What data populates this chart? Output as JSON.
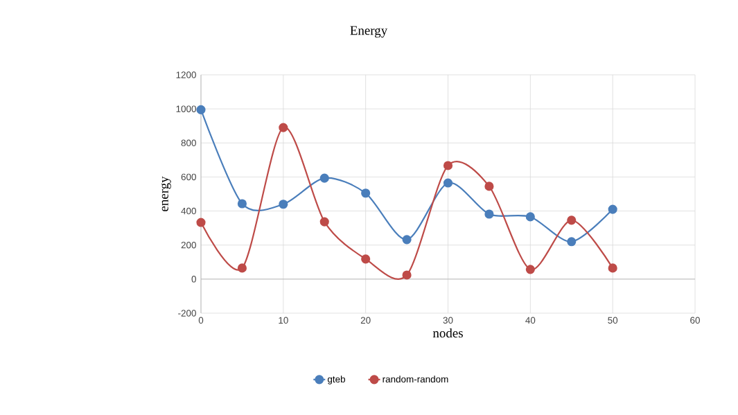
{
  "chart_data": {
    "type": "line",
    "title": "Energy",
    "xlabel": "nodes",
    "ylabel": "energy",
    "x": [
      0,
      5,
      10,
      15,
      20,
      25,
      30,
      35,
      40,
      45,
      50
    ],
    "series": [
      {
        "name": "gteb",
        "color": "#4a7ebb",
        "values": [
          995,
          443,
          440,
          593,
          505,
          232,
          565,
          382,
          366,
          220,
          410
        ]
      },
      {
        "name": "random-random",
        "color": "#be4b48",
        "values": [
          333,
          65,
          890,
          337,
          118,
          24,
          667,
          545,
          57,
          346,
          65
        ]
      }
    ],
    "xlim": [
      0,
      60
    ],
    "ylim": [
      -200,
      1200
    ],
    "xticks": [
      0,
      10,
      20,
      30,
      40,
      50,
      60
    ],
    "yticks": [
      -200,
      0,
      200,
      400,
      600,
      800,
      1000,
      1200
    ],
    "grid": true,
    "legend": "bottom",
    "marker": "circle",
    "line_style": "solid"
  }
}
